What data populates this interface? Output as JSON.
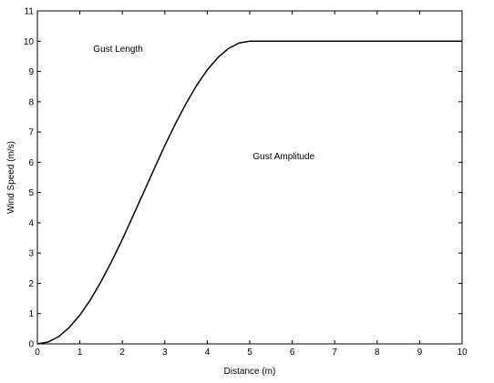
{
  "chart_data": {
    "type": "line",
    "title": "",
    "xlabel": "Distance (m)",
    "ylabel": "Wind Speed (m/s)",
    "xlim": [
      0,
      10
    ],
    "ylim": [
      0,
      11
    ],
    "xticks": [
      0,
      1,
      2,
      3,
      4,
      5,
      6,
      7,
      8,
      9,
      10
    ],
    "yticks": [
      0,
      1,
      2,
      3,
      4,
      5,
      6,
      7,
      8,
      9,
      10,
      11
    ],
    "grid": false,
    "series": [
      {
        "x": [
          0,
          0.25,
          0.5,
          0.75,
          1.0,
          1.25,
          1.5,
          1.75,
          2.0,
          2.25,
          2.5,
          2.75,
          3.0,
          3.25,
          3.5,
          3.75,
          4.0,
          4.25,
          4.5,
          4.75,
          5.0,
          5.5,
          6,
          7,
          8,
          9,
          10
        ],
        "y": [
          0,
          0.06,
          0.24,
          0.54,
          0.95,
          1.46,
          2.06,
          2.73,
          3.45,
          4.22,
          5.0,
          5.78,
          6.55,
          7.27,
          7.94,
          8.54,
          9.05,
          9.46,
          9.76,
          9.94,
          10.0,
          10.0,
          10.0,
          10.0,
          10.0,
          10.0,
          10.0
        ],
        "color": "#000000"
      }
    ],
    "annotations": [
      {
        "text": "Gust Length",
        "x": 1.9,
        "y": 9.65
      },
      {
        "text": "Gust Amplitude",
        "x": 5.8,
        "y": 6.1
      }
    ]
  }
}
